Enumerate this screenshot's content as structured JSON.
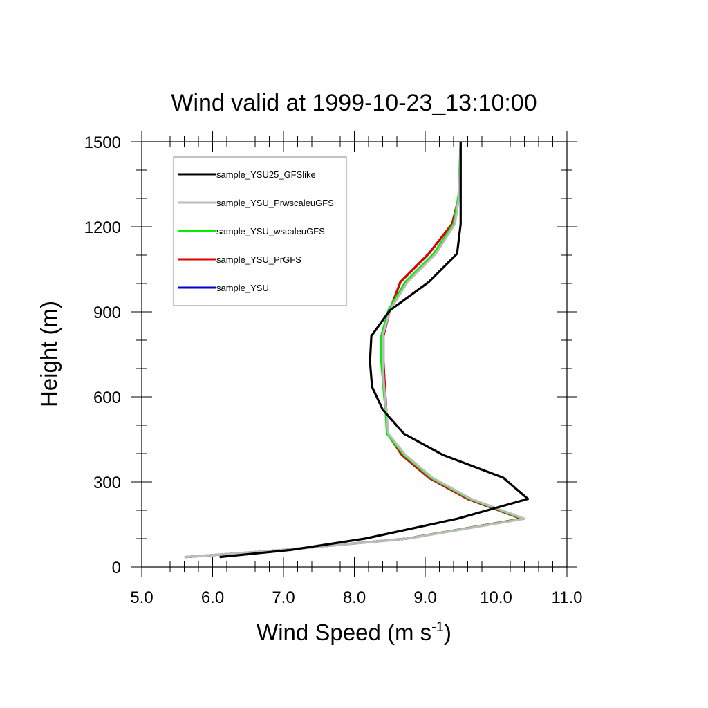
{
  "chart_data": {
    "type": "line",
    "title": "Wind valid at 1999-10-23_13:10:00",
    "xlabel": "Wind Speed (m s",
    "xlabel_sup": "-1",
    "xlabel_end": ")",
    "ylabel": "Height (m)",
    "xlim": [
      5.0,
      11.0
    ],
    "ylim": [
      0,
      1500
    ],
    "x_ticks": [
      "5.0",
      "6.0",
      "7.0",
      "8.0",
      "9.0",
      "10.0",
      "11.0"
    ],
    "y_ticks": [
      "0",
      "300",
      "600",
      "900",
      "1200",
      "1500"
    ],
    "legend_position": "top-left",
    "series": [
      {
        "name": "sample_YSU25_GFSlike",
        "color": "#000000",
        "x": [
          6.1,
          7.1,
          8.15,
          9.45,
          10.45,
          10.1,
          9.25,
          8.7,
          8.4,
          8.25,
          8.22,
          8.24,
          8.5,
          9.05,
          9.45,
          9.5,
          9.5,
          9.5
        ],
        "y": [
          35,
          60,
          100,
          170,
          240,
          315,
          395,
          470,
          555,
          635,
          725,
          815,
          905,
          1005,
          1105,
          1210,
          1310,
          1500
        ]
      },
      {
        "name": "sample_YSU_PrwscaleuGFS",
        "color": "#bbbbbb",
        "x": [
          5.6,
          7.0,
          8.75,
          10.4,
          9.65,
          9.1,
          8.72,
          8.48,
          8.45,
          8.42,
          8.4,
          8.4,
          8.5,
          8.75,
          9.15,
          9.42,
          9.48,
          9.5
        ],
        "y": [
          35,
          60,
          100,
          170,
          240,
          315,
          395,
          470,
          555,
          635,
          725,
          815,
          905,
          1005,
          1105,
          1210,
          1310,
          1500
        ]
      },
      {
        "name": "sample_YSU_wscaleuGFS",
        "color": "#00ee00",
        "x": [
          5.62,
          7.0,
          8.74,
          10.38,
          9.63,
          9.08,
          8.7,
          8.46,
          8.44,
          8.41,
          8.38,
          8.38,
          8.48,
          8.72,
          9.12,
          9.4,
          9.47,
          9.5
        ],
        "y": [
          35,
          60,
          100,
          170,
          240,
          315,
          395,
          470,
          555,
          635,
          725,
          815,
          905,
          1005,
          1105,
          1210,
          1310,
          1500
        ]
      },
      {
        "name": "sample_YSU_PrGFS",
        "color": "#dd0000",
        "x": [
          5.62,
          7.0,
          8.74,
          10.36,
          9.6,
          9.05,
          8.67,
          8.47,
          8.45,
          8.43,
          8.41,
          8.41,
          8.5,
          8.65,
          9.05,
          9.38,
          9.48,
          9.5
        ],
        "y": [
          35,
          60,
          100,
          170,
          240,
          315,
          395,
          470,
          555,
          635,
          725,
          815,
          905,
          1005,
          1105,
          1210,
          1310,
          1500
        ]
      },
      {
        "name": "sample_YSU",
        "color": "#0000cc",
        "x": [
          5.62,
          7.0,
          8.74,
          10.36,
          9.6,
          9.05,
          8.67,
          8.47,
          8.45,
          8.43,
          8.41,
          8.41,
          8.5,
          8.65,
          9.05,
          9.38,
          9.48,
          9.5
        ],
        "y": [
          35,
          60,
          100,
          170,
          240,
          315,
          395,
          470,
          555,
          635,
          725,
          815,
          905,
          1005,
          1105,
          1210,
          1310,
          1500
        ]
      }
    ]
  }
}
